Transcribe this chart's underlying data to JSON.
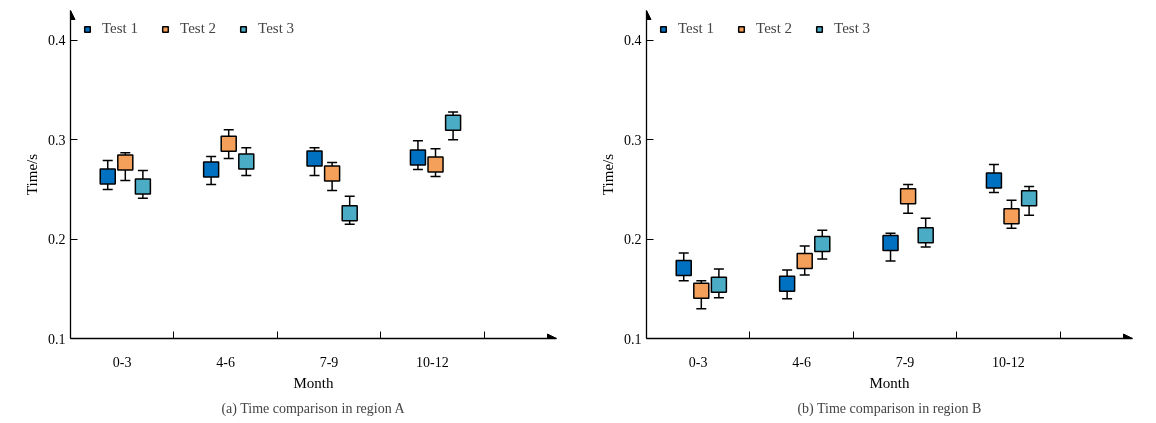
{
  "chart_data": [
    {
      "type": "scatter",
      "title": "(a) Time comparison in region A",
      "xlabel": "Month",
      "ylabel": "Time/s",
      "categories": [
        "0-3",
        "4-6",
        "7-9",
        "10-12"
      ],
      "ylim": [
        0.1,
        0.43
      ],
      "yticks": [
        0.1,
        0.2,
        0.3,
        0.4
      ],
      "grid": false,
      "legend": "top left",
      "marker": "square",
      "series": [
        {
          "name": "Test 1",
          "color": "#0070c0",
          "values": [
            0.263,
            0.27,
            0.281,
            0.282
          ],
          "errors": [
            [
              0.25,
              0.279
            ],
            [
              0.255,
              0.283
            ],
            [
              0.264,
              0.292
            ],
            [
              0.27,
              0.299
            ]
          ]
        },
        {
          "name": "Test 2",
          "color": "#f4a05a",
          "values": [
            0.277,
            0.296,
            0.266,
            0.275
          ],
          "errors": [
            [
              0.259,
              0.287
            ],
            [
              0.281,
              0.31
            ],
            [
              0.249,
              0.277
            ],
            [
              0.263,
              0.291
            ]
          ]
        },
        {
          "name": "Test 3",
          "color": "#4bacc6",
          "values": [
            0.253,
            0.278,
            0.226,
            0.317
          ],
          "errors": [
            [
              0.241,
              0.269
            ],
            [
              0.264,
              0.292
            ],
            [
              0.215,
              0.243
            ],
            [
              0.3,
              0.328
            ]
          ]
        }
      ]
    },
    {
      "type": "scatter",
      "title": "(b) Time comparison in region B",
      "xlabel": "Month",
      "ylabel": "Time/s",
      "categories": [
        "0-3",
        "4-6",
        "7-9",
        "10-12"
      ],
      "ylim": [
        0.1,
        0.43
      ],
      "yticks": [
        0.1,
        0.2,
        0.3,
        0.4
      ],
      "grid": false,
      "legend": "top left",
      "marker": "square",
      "series": [
        {
          "name": "Test 1",
          "color": "#0070c0",
          "values": [
            0.171,
            0.155,
            0.196,
            0.259
          ],
          "errors": [
            [
              0.158,
              0.186
            ],
            [
              0.14,
              0.169
            ],
            [
              0.178,
              0.206
            ],
            [
              0.247,
              0.275
            ]
          ]
        },
        {
          "name": "Test 2",
          "color": "#f4a05a",
          "values": [
            0.148,
            0.178,
            0.243,
            0.223
          ],
          "errors": [
            [
              0.13,
              0.158
            ],
            [
              0.164,
              0.193
            ],
            [
              0.226,
              0.255
            ],
            [
              0.211,
              0.239
            ]
          ]
        },
        {
          "name": "Test 3",
          "color": "#4bacc6",
          "values": [
            0.154,
            0.195,
            0.204,
            0.241
          ],
          "errors": [
            [
              0.141,
              0.17
            ],
            [
              0.18,
              0.209
            ],
            [
              0.192,
              0.221
            ],
            [
              0.224,
              0.253
            ]
          ]
        }
      ]
    }
  ]
}
